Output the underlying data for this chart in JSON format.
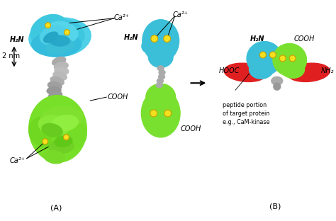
{
  "bg_color": "#ffffff",
  "cyan": "#3BBFD8",
  "green": "#7AE030",
  "gray": "#999999",
  "gray2": "#AAAAAA",
  "red": "#E02020",
  "yellow": "#F5E020",
  "yellow_edge": "#C8A000",
  "text_color": "#000000",
  "label_A": "(A)",
  "label_B": "(B)",
  "h2n": "H₂N",
  "cooh": "COOH",
  "hooc": "HOOC",
  "nh2": "NH₂",
  "ca2": "Ca²⁺",
  "nm2": "2 nm",
  "peptide_text": "peptide portion\nof target protein\ne.g., CaM-kinase"
}
